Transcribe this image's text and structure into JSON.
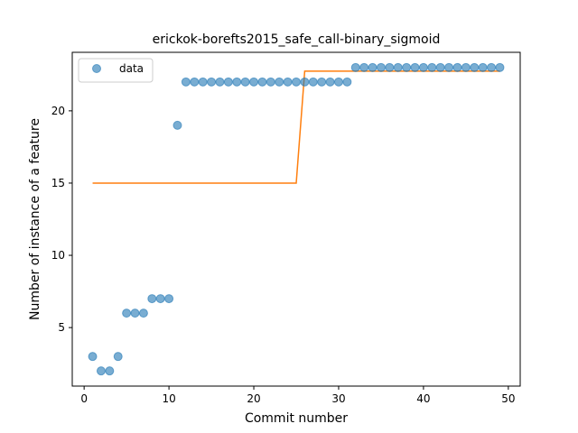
{
  "chart_data": {
    "type": "scatter",
    "title": "erickok-borefts2015_safe_call-binary_sigmoid",
    "xlabel": "Commit number",
    "ylabel": "Number of instance of a feature",
    "xlim": [
      -1.4,
      51.4
    ],
    "ylim": [
      0.95,
      24.05
    ],
    "xticks": [
      0,
      10,
      20,
      30,
      40,
      50
    ],
    "yticks": [
      5,
      10,
      15,
      20
    ],
    "grid": false,
    "legend_position": "top-left",
    "series": [
      {
        "name": "data",
        "kind": "scatter",
        "color": "#1f77b4",
        "x": [
          1,
          2,
          3,
          4,
          5,
          6,
          7,
          8,
          9,
          10,
          11,
          12,
          13,
          14,
          15,
          16,
          17,
          18,
          19,
          20,
          21,
          22,
          23,
          24,
          25,
          26,
          27,
          28,
          29,
          30,
          31,
          32,
          33,
          34,
          35,
          36,
          37,
          38,
          39,
          40,
          41,
          42,
          43,
          44,
          45,
          46,
          47,
          48,
          49
        ],
        "y": [
          3,
          2,
          2,
          3,
          6,
          6,
          6,
          7,
          7,
          7,
          19,
          22,
          22,
          22,
          22,
          22,
          22,
          22,
          22,
          22,
          22,
          22,
          22,
          22,
          22,
          22,
          22,
          22,
          22,
          22,
          22,
          23,
          23,
          23,
          23,
          23,
          23,
          23,
          23,
          23,
          23,
          23,
          23,
          23,
          23,
          23,
          23,
          23,
          23
        ]
      },
      {
        "kind": "line",
        "color": "#ff7f0e",
        "x": [
          1,
          2,
          3,
          4,
          5,
          6,
          7,
          8,
          9,
          10,
          11,
          12,
          13,
          14,
          15,
          16,
          17,
          18,
          19,
          20,
          21,
          22,
          23,
          24,
          25,
          26,
          27,
          28,
          29,
          30,
          31,
          32,
          33,
          34,
          35,
          36,
          37,
          38,
          39,
          40,
          41,
          42,
          43,
          44,
          45,
          46,
          47,
          48,
          49
        ],
        "y": [
          15,
          15,
          15,
          15,
          15,
          15,
          15,
          15,
          15,
          15,
          15,
          15,
          15,
          15,
          15,
          15,
          15,
          15,
          15,
          15,
          15,
          15,
          15,
          15,
          15,
          22.75,
          22.75,
          22.75,
          22.75,
          22.75,
          22.75,
          22.75,
          22.75,
          22.75,
          22.75,
          22.75,
          22.75,
          22.75,
          22.75,
          22.75,
          22.75,
          22.75,
          22.75,
          22.75,
          22.75,
          22.75,
          22.75,
          22.75,
          22.75
        ]
      }
    ]
  }
}
